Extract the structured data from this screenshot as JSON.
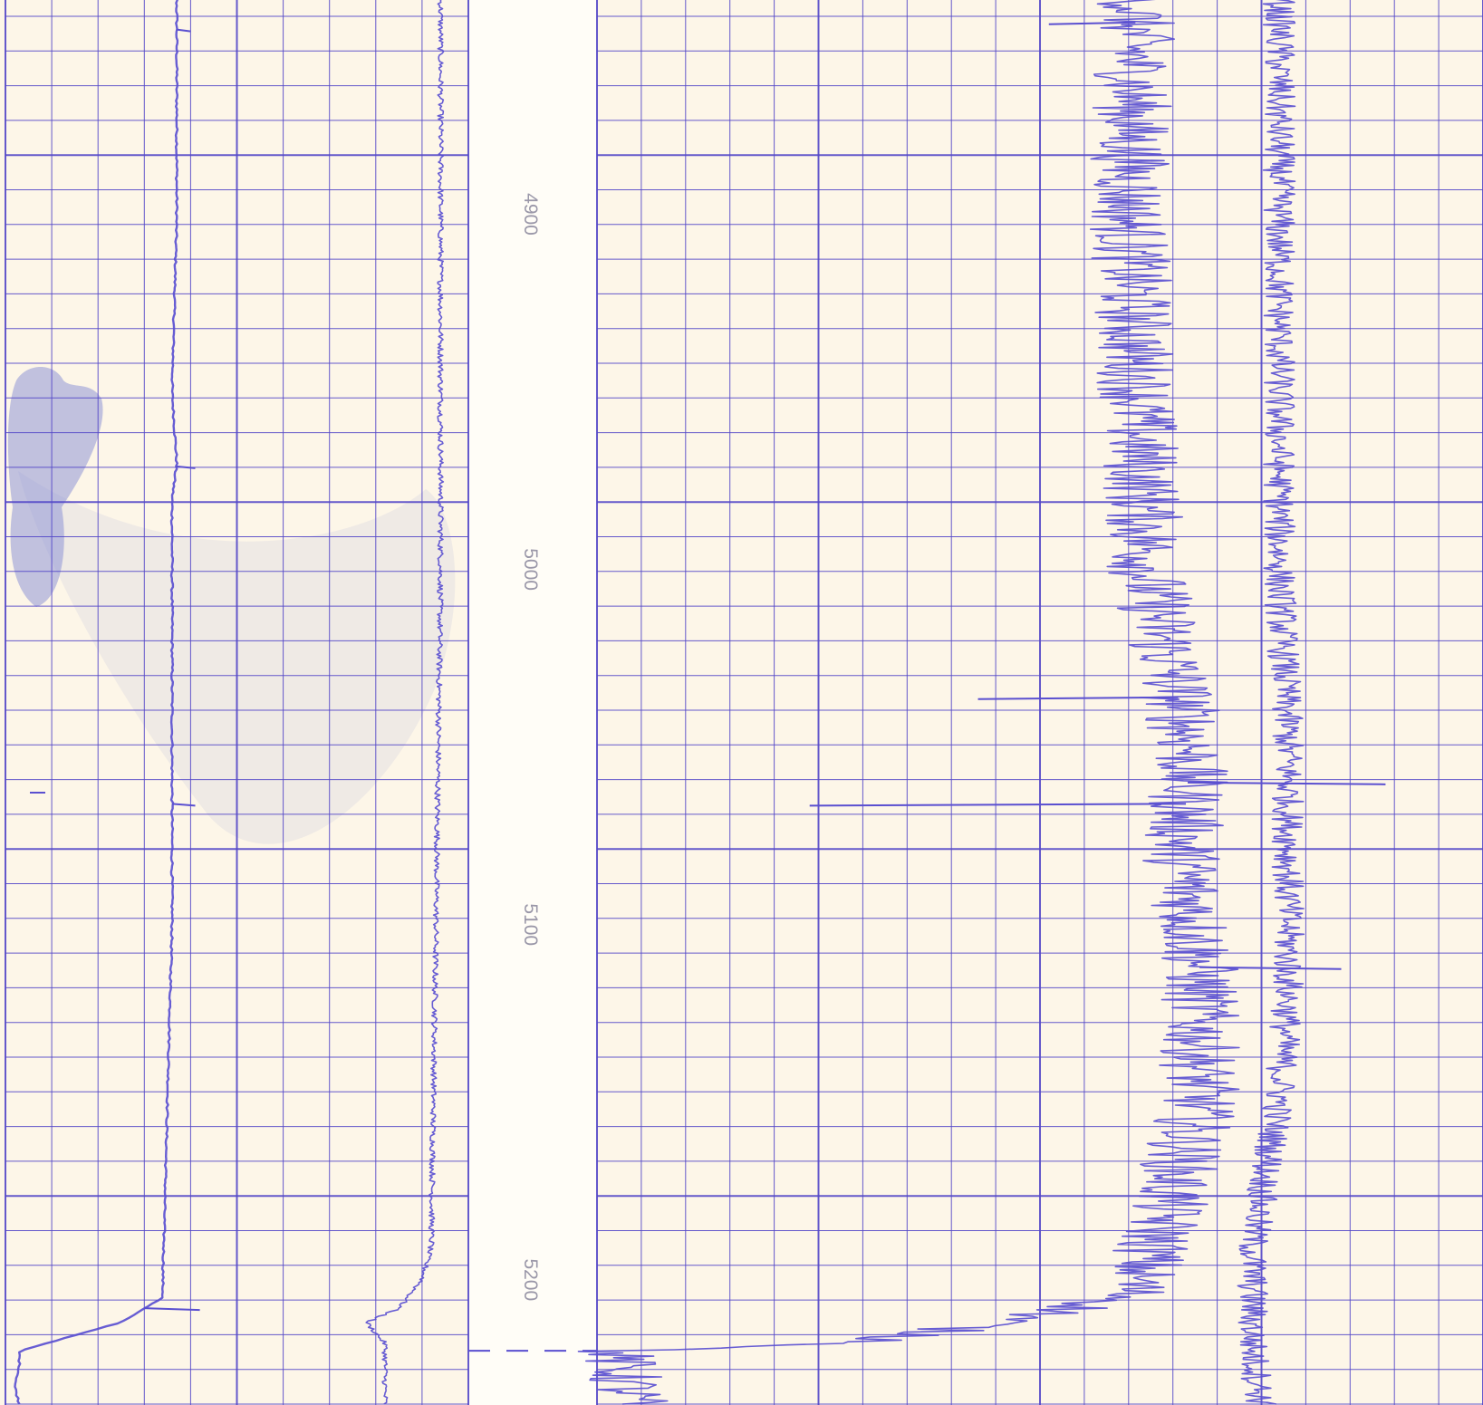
{
  "chart_data": {
    "type": "line",
    "title": "",
    "xlabel": "",
    "ylabel": "",
    "orientation": "vertical (depth increases downward)",
    "depth_labels": [
      "4900",
      "5000",
      "5100",
      "5200"
    ],
    "depth_range": [
      4830,
      5235
    ],
    "grid": true,
    "colors": {
      "paper": "#fdf6e8",
      "depth_track": "#fffdf7",
      "grid": "#5448c8",
      "trace": "#5a4fd0",
      "depth_text": "#9a97a8",
      "smudge": "#8f96d6"
    },
    "tracks": [
      {
        "name": "left",
        "grid_columns": 10
      },
      {
        "name": "right",
        "grid_columns": 20
      }
    ],
    "series": [
      {
        "track": "left",
        "shape": "smooth",
        "depth": [
          4830,
          4840,
          4850,
          4880,
          4900,
          4950,
          4970,
          4980,
          5050,
          5060,
          5100,
          5150,
          5200,
          5205,
          5208,
          5212,
          5220,
          5225,
          5230,
          5235
        ],
        "value": [
          0.37,
          0.37,
          0.37,
          0.37,
          0.37,
          0.36,
          0.37,
          0.36,
          0.36,
          0.36,
          0.36,
          0.35,
          0.34,
          0.34,
          0.3,
          0.25,
          0.03,
          0.03,
          0.02,
          0.03
        ]
      },
      {
        "track": "left",
        "shape": "noisy",
        "depth": [
          4830,
          4900,
          5000,
          5100,
          5190,
          5200,
          5208,
          5212,
          5218,
          5225,
          5235
        ],
        "value": [
          0.94,
          0.94,
          0.94,
          0.93,
          0.92,
          0.9,
          0.85,
          0.78,
          0.82,
          0.82,
          0.82
        ]
      },
      {
        "track": "right",
        "shape": "noisy",
        "depth": [
          4830,
          4900,
          4950,
          5000,
          5050,
          5080,
          5110,
          5150,
          5190,
          5205,
          5210,
          5218,
          5220,
          5235
        ],
        "value": [
          0.61,
          0.6,
          0.61,
          0.62,
          0.67,
          0.66,
          0.68,
          0.68,
          0.63,
          0.6,
          0.5,
          0.3,
          0.02,
          0.04
        ]
      },
      {
        "track": "right",
        "shape": "noisy",
        "depth": [
          4830,
          4900,
          5000,
          5050,
          5080,
          5120,
          5150,
          5190,
          5205,
          5220,
          5235
        ],
        "value": [
          0.77,
          0.77,
          0.77,
          0.78,
          0.78,
          0.78,
          0.77,
          0.74,
          0.74,
          0.74,
          0.75
        ]
      }
    ],
    "spikes": [
      {
        "track": "left",
        "depth": 4848,
        "value": 0.4
      },
      {
        "track": "left",
        "depth": 4971,
        "value": 0.41
      },
      {
        "track": "left",
        "depth": 5066,
        "value": 0.41
      },
      {
        "track": "left",
        "depth": 5208,
        "value": 0.42
      },
      {
        "track": "right",
        "depth": 4846,
        "value": 0.51
      },
      {
        "track": "right",
        "depth": 5036,
        "value": 0.43
      },
      {
        "track": "right",
        "depth": 5066,
        "value": 0.24
      },
      {
        "track": "right",
        "depth": 5060,
        "value": 0.89
      },
      {
        "track": "right",
        "depth": 5112,
        "value": 0.84
      }
    ]
  }
}
